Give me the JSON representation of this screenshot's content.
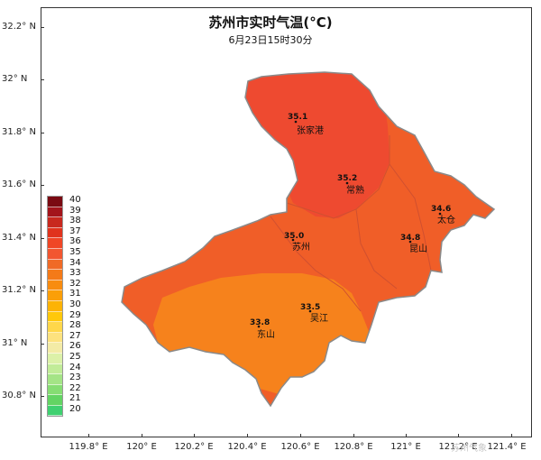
{
  "title": "苏州市实时气温(°C)",
  "subtitle": "6月23日15时30分",
  "y_axis_labels": [
    "32.2° N",
    "32° N",
    "31.8° N",
    "31.6° N",
    "31.4° N",
    "31.2° N",
    "31° N",
    "30.8° N"
  ],
  "x_axis_labels": [
    "119.8° E",
    "120° E",
    "120.2° E",
    "120.4° E",
    "120.6° E",
    "120.8° E",
    "121° E",
    "121.2° E",
    "121.4° E"
  ],
  "legend": {
    "values": [
      "40",
      "39",
      "38",
      "37",
      "36",
      "35",
      "34",
      "33",
      "32",
      "31",
      "30",
      "29",
      "28",
      "27",
      "26",
      "25",
      "24",
      "23",
      "22",
      "21",
      "20"
    ],
    "colors": [
      "#7a0a12",
      "#a3141b",
      "#c8281e",
      "#e0331d",
      "#f04626",
      "#f25630",
      "#f06a26",
      "#f47a18",
      "#f88c10",
      "#fb9f08",
      "#fdb305",
      "#ffc80a",
      "#ffd74a",
      "#fde27e",
      "#f3eba6",
      "#dcf1a8",
      "#c1ec98",
      "#a4e486",
      "#86dd73",
      "#63d463",
      "#3fd070"
    ]
  },
  "stations": [
    {
      "name": "张家港",
      "value": "35.1"
    },
    {
      "name": "常熟",
      "value": "35.2"
    },
    {
      "name": "太仓",
      "value": "34.6"
    },
    {
      "name": "昆山",
      "value": "34.8"
    },
    {
      "name": "苏州",
      "value": "35.0"
    },
    {
      "name": "吴江",
      "value": "33.5"
    },
    {
      "name": "东山",
      "value": "33.8"
    }
  ],
  "colors": {
    "zone_35": "#ee4a30",
    "zone_34": "#f05e28",
    "zone_33": "#f6821c",
    "district_border": "#d05030",
    "outline": "#8a8a8a"
  },
  "watermark": "苏州气象"
}
